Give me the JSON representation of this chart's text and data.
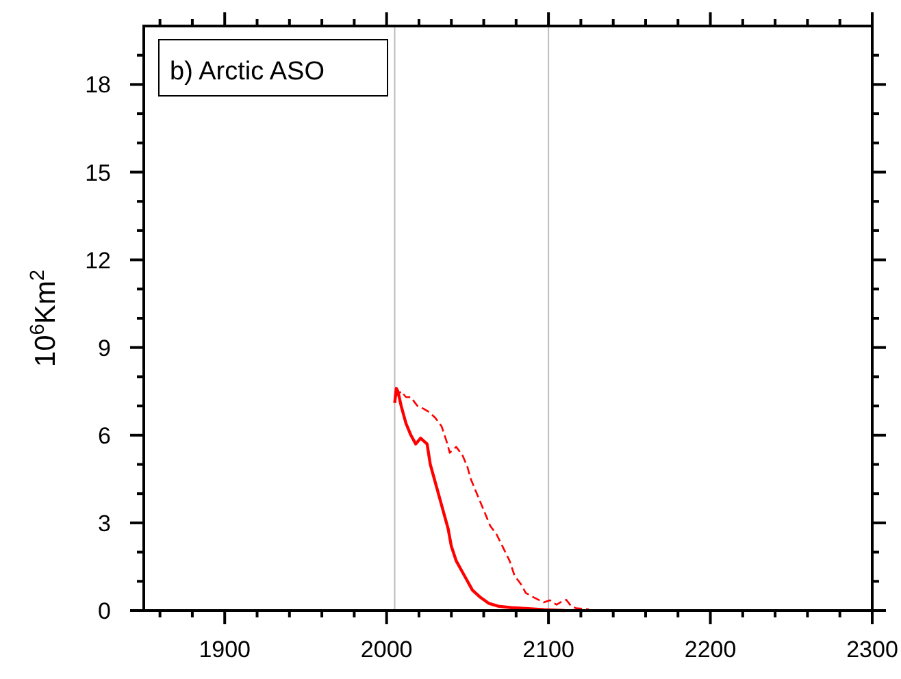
{
  "chart_data": {
    "type": "line",
    "title": "b) Arctic ASO",
    "ylabel": "10$^{6}$Km$^{2}$",
    "xlim": [
      1850,
      2300
    ],
    "ylim": [
      0,
      20
    ],
    "xticks": [
      {
        "value": 1860,
        "label": null
      },
      {
        "value": 1880,
        "label": null
      },
      1900,
      {
        "value": 1920,
        "label": null
      },
      {
        "value": 1940,
        "label": null
      },
      {
        "value": 1960,
        "label": null
      },
      {
        "value": 1980,
        "label": null
      },
      2000,
      {
        "value": 2020,
        "label": null
      },
      {
        "value": 2040,
        "label": null
      },
      {
        "value": 2060,
        "label": null
      },
      {
        "value": 2080,
        "label": null
      },
      2100,
      {
        "value": 2120,
        "label": null
      },
      {
        "value": 2140,
        "label": null
      },
      {
        "value": 2160,
        "label": null
      },
      {
        "value": 2180,
        "label": null
      },
      2200,
      {
        "value": 2220,
        "label": null
      },
      {
        "value": 2240,
        "label": null
      },
      {
        "value": 2260,
        "label": null
      },
      {
        "value": 2280,
        "label": null
      },
      2300
    ],
    "yticks": [
      0,
      {
        "value": 1,
        "label": null
      },
      {
        "value": 2,
        "label": null
      },
      3,
      {
        "value": 4,
        "label": null
      },
      {
        "value": 5,
        "label": null
      },
      6,
      {
        "value": 7,
        "label": null
      },
      {
        "value": 8,
        "label": null
      },
      9,
      {
        "value": 10,
        "label": null
      },
      {
        "value": 11,
        "label": null
      },
      12,
      {
        "value": 13,
        "label": null
      },
      {
        "value": 14,
        "label": null
      },
      15,
      {
        "value": 16,
        "label": null
      },
      {
        "value": 17,
        "label": null
      },
      18,
      {
        "value": 19,
        "label": null
      }
    ],
    "grid": false,
    "ref_lines": [
      {
        "axis": "x",
        "value": 2005,
        "color": "#bbbbbb"
      },
      {
        "axis": "x",
        "value": 2100,
        "color": "#bbbbbb"
      }
    ],
    "series": [
      {
        "color": "#ff0000",
        "line_style": "solid",
        "x": [
          2005,
          2006,
          2007,
          2009,
          2012,
          2015,
          2018,
          2021,
          2025,
          2027,
          2029,
          2031,
          2034,
          2036,
          2038,
          2040,
          2043,
          2046,
          2049,
          2053,
          2058,
          2063,
          2069,
          2077,
          2086,
          2097,
          2110
        ],
        "values": [
          7.1,
          7.6,
          7.5,
          7.0,
          6.4,
          6.0,
          5.7,
          5.9,
          5.7,
          5.0,
          4.6,
          4.2,
          3.6,
          3.2,
          2.8,
          2.2,
          1.7,
          1.4,
          1.1,
          0.7,
          0.45,
          0.25,
          0.15,
          0.1,
          0.07,
          0.03,
          0.0
        ]
      },
      {
        "color": "#ff0000",
        "line_style": "dashed",
        "x": [
          2005,
          2009,
          2012,
          2015,
          2019,
          2023,
          2026,
          2030,
          2034,
          2037,
          2039,
          2043,
          2047,
          2050,
          2052,
          2055,
          2058,
          2061,
          2064,
          2068,
          2072,
          2076,
          2079,
          2083,
          2086,
          2091,
          2097,
          2101,
          2105,
          2108,
          2111,
          2114,
          2117,
          2121,
          2125
        ],
        "values": [
          7.3,
          7.5,
          7.3,
          7.3,
          7.0,
          6.9,
          6.8,
          6.6,
          6.3,
          5.8,
          5.4,
          5.6,
          5.3,
          4.9,
          4.5,
          4.1,
          3.7,
          3.3,
          2.9,
          2.6,
          2.15,
          1.7,
          1.2,
          0.9,
          0.6,
          0.45,
          0.28,
          0.35,
          0.2,
          0.3,
          0.37,
          0.15,
          0.08,
          0.06,
          0.04
        ]
      }
    ]
  }
}
